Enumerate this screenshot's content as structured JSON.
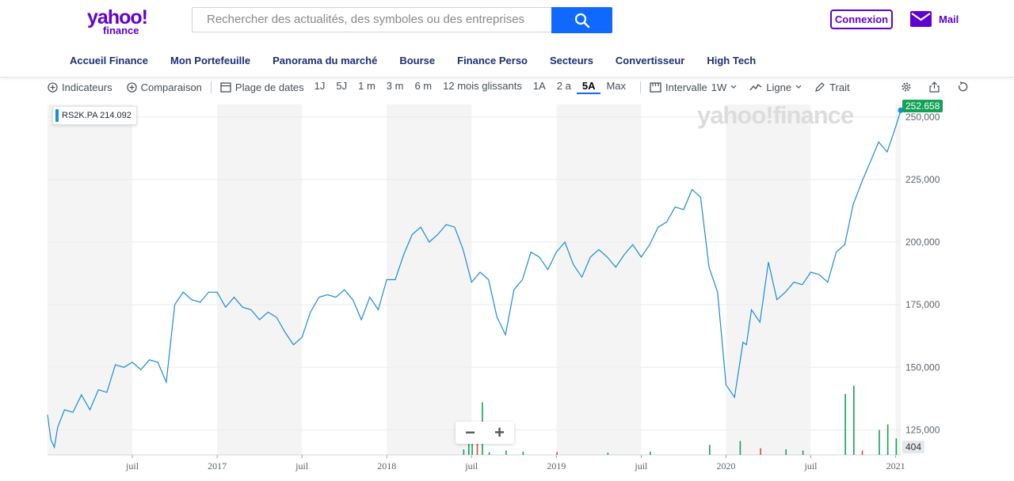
{
  "header": {
    "logo_brand": "yahoo!",
    "logo_sub": "finance",
    "search_placeholder": "Rechercher des actualités, des symboles ou des entreprises",
    "signin_label": "Connexion",
    "mail_label": "Mail"
  },
  "nav": [
    "Accueil Finance",
    "Mon Portefeuille",
    "Panorama du marché",
    "Bourse",
    "Finance Perso",
    "Secteurs",
    "Convertisseur",
    "High Tech"
  ],
  "toolbar": {
    "indicators_label": "Indicateurs",
    "comparison_label": "Comparaison",
    "date_range_label": "Plage de dates",
    "ranges": [
      "1J",
      "5J",
      "1 m",
      "3 m",
      "6 m",
      "12 mois glissants",
      "1A",
      "2 a",
      "5A",
      "Max"
    ],
    "active_range": "5A",
    "interval_label": "Intervalle",
    "interval_value": "1W",
    "chart_type_label": "Ligne",
    "draw_label": "Trait"
  },
  "chart": {
    "ticker_label": "RS2K.PA",
    "ticker_value": "214.092",
    "last_price_label": "252.658",
    "volume_label": "404",
    "watermark": "yahoo!finance",
    "zoom_out": "−",
    "zoom_in": "+"
  },
  "chart_data": {
    "type": "line",
    "series": [
      {
        "name": "RS2K.PA",
        "x": [
          2016.0,
          2016.02,
          2016.04,
          2016.06,
          2016.1,
          2016.15,
          2016.2,
          2016.25,
          2016.3,
          2016.35,
          2016.4,
          2016.45,
          2016.5,
          2016.55,
          2016.6,
          2016.65,
          2016.7,
          2016.75,
          2016.8,
          2016.85,
          2016.9,
          2016.95,
          2017.0,
          2017.05,
          2017.1,
          2017.15,
          2017.2,
          2017.25,
          2017.3,
          2017.35,
          2017.4,
          2017.45,
          2017.5,
          2017.55,
          2017.6,
          2017.65,
          2017.7,
          2017.75,
          2017.8,
          2017.85,
          2017.9,
          2017.95,
          2018.0,
          2018.05,
          2018.1,
          2018.15,
          2018.2,
          2018.25,
          2018.3,
          2018.35,
          2018.4,
          2018.45,
          2018.5,
          2018.55,
          2018.6,
          2018.65,
          2018.7,
          2018.75,
          2018.8,
          2018.85,
          2018.9,
          2018.95,
          2019.0,
          2019.05,
          2019.1,
          2019.15,
          2019.2,
          2019.25,
          2019.3,
          2019.35,
          2019.4,
          2019.45,
          2019.5,
          2019.55,
          2019.6,
          2019.65,
          2019.7,
          2019.75,
          2019.8,
          2019.85,
          2019.9,
          2019.95,
          2020.0,
          2020.05,
          2020.1,
          2020.12,
          2020.15,
          2020.2,
          2020.25,
          2020.3,
          2020.35,
          2020.4,
          2020.45,
          2020.5,
          2020.55,
          2020.6,
          2020.65,
          2020.7,
          2020.75,
          2020.8,
          2020.85,
          2020.9,
          2020.95,
          2021.0,
          2021.03
        ],
        "y": [
          131,
          121,
          118,
          126,
          133,
          132,
          139,
          133,
          141,
          140,
          151,
          150,
          152,
          149,
          153,
          152,
          144,
          175,
          180,
          177,
          176,
          180,
          180,
          174,
          178,
          174,
          173,
          169,
          172,
          170,
          164,
          159,
          162,
          172,
          178,
          179,
          178,
          181,
          177,
          169,
          178,
          173,
          185,
          185,
          195,
          203,
          206,
          200,
          203,
          207,
          206,
          197,
          184,
          188,
          185,
          170,
          163,
          181,
          185,
          196,
          194,
          189,
          196,
          200,
          191,
          186,
          194,
          197,
          194,
          190,
          195,
          199,
          194,
          199,
          206,
          208,
          214,
          213,
          221,
          218,
          190,
          180,
          143,
          138,
          160,
          159,
          173,
          168,
          192,
          177,
          180,
          184,
          183,
          188,
          187,
          184,
          196,
          199,
          215,
          224,
          232,
          240,
          236,
          246,
          252.658
        ]
      }
    ],
    "volume": {
      "x": [
        2018.45,
        2018.48,
        2018.5,
        2018.53,
        2018.56,
        2018.6,
        2018.7,
        2018.8,
        2019.0,
        2019.3,
        2019.55,
        2019.9,
        2020.08,
        2020.2,
        2020.35,
        2020.45,
        2020.7,
        2020.75,
        2020.8,
        2020.9,
        2020.95,
        2021.0
      ],
      "y": [
        10,
        30,
        35,
        40,
        95,
        5,
        8,
        6,
        5,
        4,
        6,
        18,
        25,
        12,
        10,
        8,
        110,
        125,
        8,
        45,
        55,
        30
      ]
    },
    "xlabel": "",
    "ylabel": "",
    "xticks": [
      "juil",
      "2017",
      "juil",
      "2018",
      "juil",
      "2019",
      "juil",
      "2020",
      "juil",
      "2021"
    ],
    "yticks": [
      "125,000",
      "150,000",
      "175,000",
      "200,000",
      "225,000",
      "250,000"
    ],
    "ylim": [
      115,
      255
    ],
    "xlim": [
      2016.0,
      2021.03
    ],
    "grid": true
  },
  "colors": {
    "accent": "#6001d2",
    "nav_text": "#1d2f74",
    "line": "#1a8cd8",
    "up": "#12a156",
    "down": "#e0463f"
  }
}
